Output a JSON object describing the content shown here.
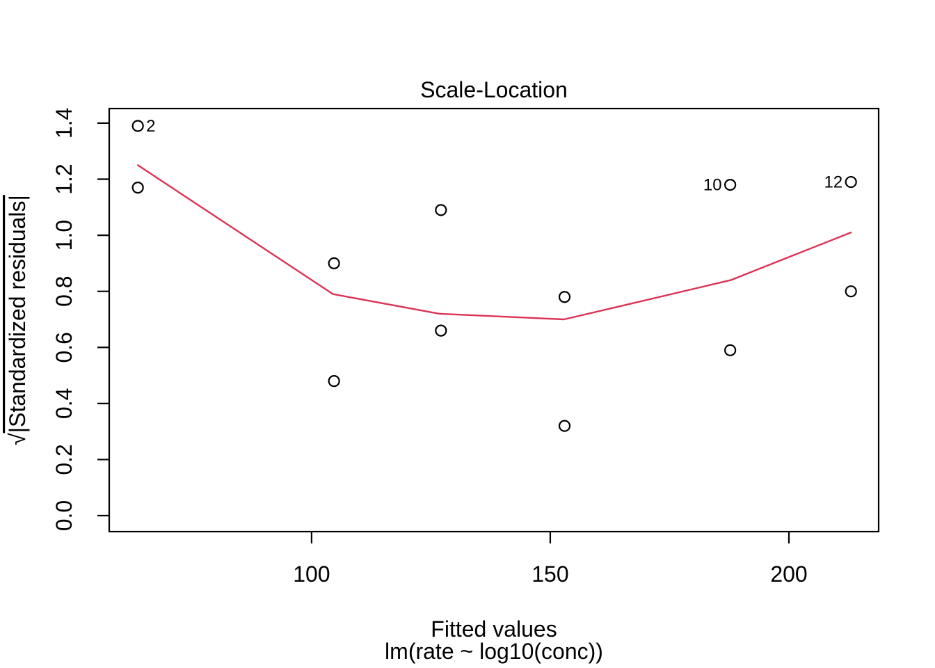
{
  "chart_data": {
    "type": "scatter",
    "title": "Scale-Location",
    "xlabel": "Fitted values",
    "sub": "lm(rate ~ log10(conc))",
    "ylabel": "sqrt(|Standardized residuals|)",
    "ylabel_prefix": "√",
    "ylabel_overlined": "|Standardized residuals|",
    "xlim": [
      57.6,
      218.8
    ],
    "ylim": [
      -0.057,
      1.452
    ],
    "x_ticks": [
      100,
      150,
      200
    ],
    "y_ticks": [
      0.0,
      0.2,
      0.4,
      0.6,
      0.8,
      1.0,
      1.2,
      1.4
    ],
    "grid": "off",
    "legend": "none",
    "point_color": "#000000",
    "smooth_color": "#dc3355",
    "points": [
      {
        "x": 63.6,
        "y": 1.39,
        "label": "2",
        "label_side": "right"
      },
      {
        "x": 63.6,
        "y": 1.17
      },
      {
        "x": 104.7,
        "y": 0.9
      },
      {
        "x": 104.7,
        "y": 0.48
      },
      {
        "x": 127.1,
        "y": 1.09
      },
      {
        "x": 127.1,
        "y": 0.66
      },
      {
        "x": 153.0,
        "y": 0.78
      },
      {
        "x": 153.0,
        "y": 0.32
      },
      {
        "x": 187.7,
        "y": 1.18,
        "label": "10",
        "label_side": "left"
      },
      {
        "x": 187.7,
        "y": 0.59
      },
      {
        "x": 213.0,
        "y": 1.19,
        "label": "12",
        "label_side": "left"
      },
      {
        "x": 213.0,
        "y": 0.8
      }
    ],
    "smooth_line": [
      [
        63.6,
        1.25
      ],
      [
        104.5,
        0.79
      ],
      [
        126.8,
        0.72
      ],
      [
        152.9,
        0.7
      ],
      [
        187.8,
        0.84
      ],
      [
        213.0,
        1.01
      ]
    ]
  }
}
